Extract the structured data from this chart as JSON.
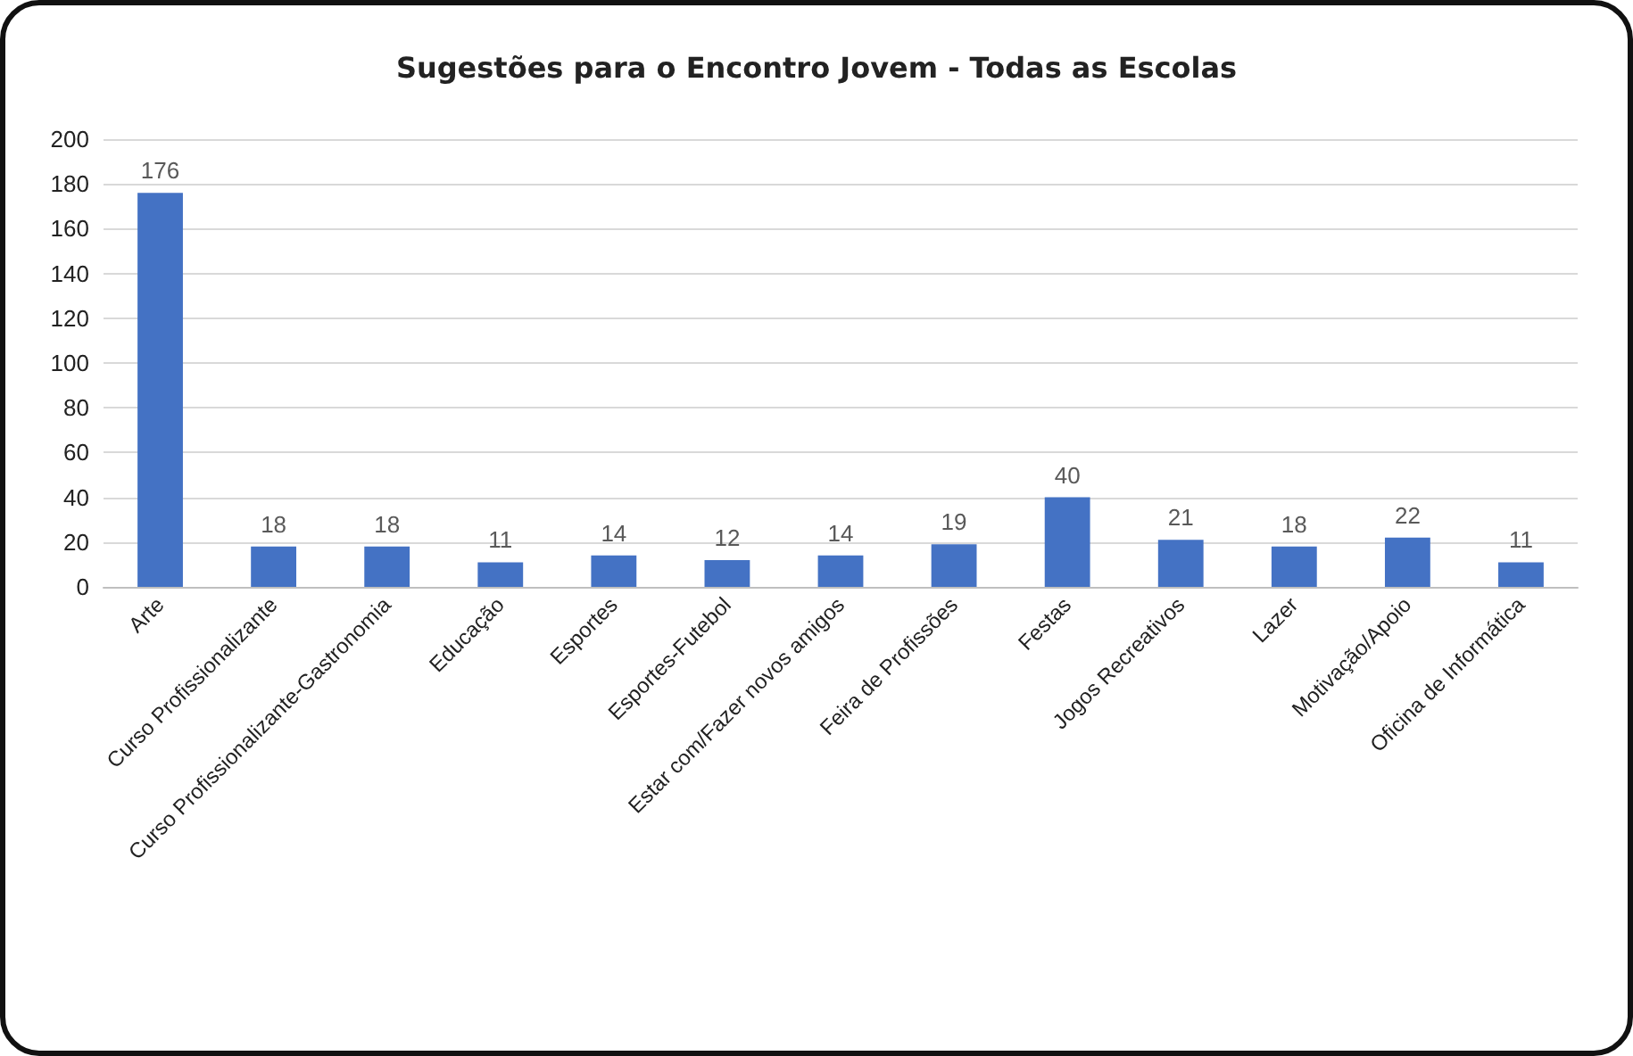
{
  "chart_data": {
    "type": "bar",
    "title": "Sugestões para o Encontro Jovem - Todas as Escolas",
    "categories": [
      "Arte",
      "Curso Profissionalizante",
      "Curso Profissionalizante-Gastronomia",
      "Educação",
      "Esportes",
      "Esportes-Futebol",
      "Estar com/Fazer novos amigos",
      "Feira de Profissões",
      "Festas",
      "Jogos Recreativos",
      "Lazer",
      "Motivação/Apoio",
      "Oficina de Informática"
    ],
    "values": [
      176,
      18,
      18,
      11,
      14,
      12,
      14,
      19,
      40,
      21,
      18,
      22,
      11
    ],
    "color": "#4472c4",
    "ylim": [
      0,
      200
    ],
    "yticks": [
      0,
      20,
      40,
      60,
      80,
      100,
      120,
      140,
      160,
      180,
      200
    ],
    "grid": "y",
    "data_labels": true
  }
}
